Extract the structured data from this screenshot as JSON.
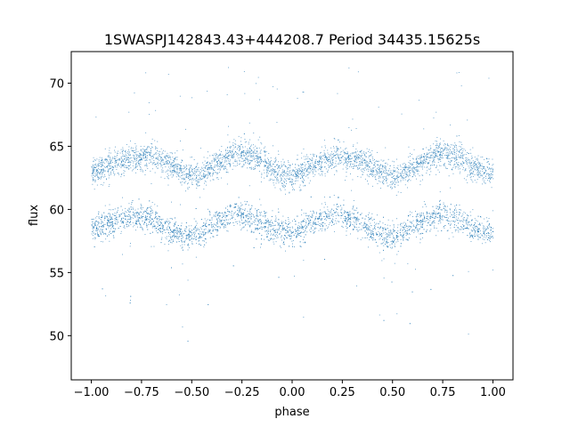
{
  "chart_data": {
    "type": "scatter",
    "title": "1SWASPJ142843.43+444208.7 Period 34435.15625s",
    "xlabel": "phase",
    "ylabel": "flux",
    "xlim": [
      -1.1,
      1.1
    ],
    "ylim": [
      46.5,
      72.5
    ],
    "xticks": [
      -1.0,
      -0.75,
      -0.5,
      -0.25,
      0.0,
      0.25,
      0.5,
      0.75,
      1.0
    ],
    "xtick_labels": [
      "−1.00",
      "−0.75",
      "−0.50",
      "−0.25",
      "0.00",
      "0.25",
      "0.50",
      "0.75",
      "1.00"
    ],
    "yticks": [
      50,
      55,
      60,
      65,
      70
    ],
    "ytick_labels": [
      "50",
      "55",
      "60",
      "65",
      "70"
    ],
    "grid": false,
    "point_color": "#1f77b4",
    "series": [
      {
        "x": [
          -1.0,
          -0.95,
          -0.9,
          -0.85,
          -0.8,
          -0.75,
          -0.7,
          -0.65,
          -0.6,
          -0.55,
          -0.5,
          -0.45,
          -0.4,
          -0.35,
          -0.3,
          -0.25,
          -0.2,
          -0.15,
          -0.1,
          -0.05,
          0.0,
          0.05,
          0.1,
          0.15,
          0.2,
          0.25,
          0.3,
          0.35,
          0.4,
          0.45,
          0.5,
          0.55,
          0.6,
          0.65,
          0.7,
          0.75,
          0.8,
          0.85,
          0.9,
          0.95,
          1.0
        ],
        "y": [
          63.0,
          63.2,
          63.5,
          63.8,
          64.0,
          64.2,
          64.3,
          64.0,
          63.5,
          63.0,
          62.6,
          62.8,
          63.3,
          63.9,
          64.3,
          64.5,
          64.3,
          63.8,
          63.2,
          62.8,
          62.7,
          63.0,
          63.4,
          63.8,
          64.1,
          64.2,
          64.1,
          63.8,
          63.3,
          62.9,
          62.6,
          62.9,
          63.3,
          63.8,
          64.3,
          64.5,
          64.3,
          63.9,
          63.4,
          63.0,
          62.9
        ]
      },
      {
        "x": [
          -1.0,
          -0.95,
          -0.9,
          -0.85,
          -0.8,
          -0.75,
          -0.7,
          -0.65,
          -0.6,
          -0.55,
          -0.5,
          -0.45,
          -0.4,
          -0.35,
          -0.3,
          -0.25,
          -0.2,
          -0.15,
          -0.1,
          -0.05,
          0.0,
          0.05,
          0.1,
          0.15,
          0.2,
          0.25,
          0.3,
          0.35,
          0.4,
          0.45,
          0.5,
          0.55,
          0.6,
          0.65,
          0.7,
          0.75,
          0.8,
          0.85,
          0.9,
          0.95,
          1.0
        ],
        "y": [
          58.4,
          58.7,
          59.0,
          59.3,
          59.5,
          59.6,
          59.3,
          58.8,
          58.3,
          58.0,
          57.9,
          58.2,
          58.8,
          59.3,
          59.6,
          59.6,
          59.3,
          58.9,
          58.5,
          58.3,
          58.2,
          58.5,
          58.9,
          59.3,
          59.6,
          59.6,
          59.3,
          58.8,
          58.3,
          58.0,
          57.9,
          58.2,
          58.7,
          59.2,
          59.5,
          59.6,
          59.3,
          58.9,
          58.5,
          58.3,
          58.2
        ]
      }
    ]
  }
}
